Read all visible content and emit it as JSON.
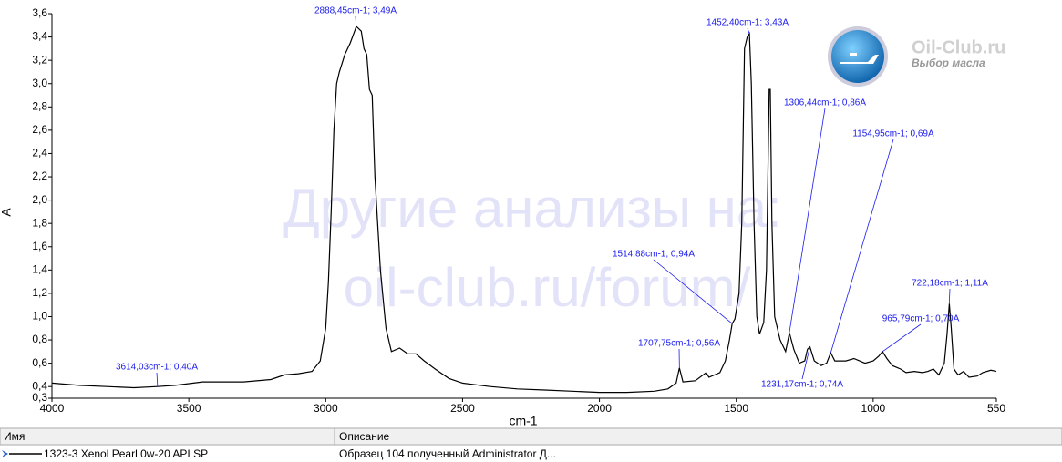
{
  "chart_data": {
    "type": "line",
    "color": "#000000",
    "xlabel": "cm-1",
    "ylabel": "A",
    "xlim": [
      4000,
      550
    ],
    "ylim": [
      0.3,
      3.6
    ],
    "xticks": [
      4000,
      3500,
      3000,
      2500,
      2000,
      1500,
      1000,
      550
    ],
    "yticks": [
      {
        "value": 0.3,
        "label": "0,3"
      },
      {
        "value": 0.4,
        "label": "0,4"
      },
      {
        "value": 0.6,
        "label": "0,6"
      },
      {
        "value": 0.8,
        "label": "0,8"
      },
      {
        "value": 1.0,
        "label": "1,0"
      },
      {
        "value": 1.2,
        "label": "1,2"
      },
      {
        "value": 1.4,
        "label": "1,4"
      },
      {
        "value": 1.6,
        "label": "1,6"
      },
      {
        "value": 1.8,
        "label": "1,8"
      },
      {
        "value": 2.0,
        "label": "2,0"
      },
      {
        "value": 2.2,
        "label": "2,2"
      },
      {
        "value": 2.4,
        "label": "2,4"
      },
      {
        "value": 2.6,
        "label": "2,6"
      },
      {
        "value": 2.8,
        "label": "2,8"
      },
      {
        "value": 3.0,
        "label": "3,0"
      },
      {
        "value": 3.2,
        "label": "3,2"
      },
      {
        "value": 3.4,
        "label": "3,4"
      },
      {
        "value": 3.6,
        "label": "3,6"
      }
    ],
    "x": [
      4000,
      3900,
      3800,
      3700,
      3614,
      3550,
      3450,
      3400,
      3300,
      3200,
      3150,
      3100,
      3050,
      3020,
      3000,
      2990,
      2980,
      2970,
      2960,
      2950,
      2930,
      2910,
      2888,
      2870,
      2860,
      2850,
      2840,
      2830,
      2820,
      2800,
      2780,
      2760,
      2730,
      2700,
      2670,
      2640,
      2600,
      2550,
      2500,
      2400,
      2300,
      2200,
      2100,
      2000,
      1900,
      1800,
      1750,
      1720,
      1708,
      1695,
      1650,
      1610,
      1600,
      1560,
      1540,
      1525,
      1515,
      1505,
      1490,
      1480,
      1470,
      1460,
      1452,
      1445,
      1435,
      1425,
      1415,
      1400,
      1390,
      1380,
      1376,
      1370,
      1360,
      1340,
      1320,
      1306,
      1290,
      1270,
      1250,
      1240,
      1231,
      1215,
      1190,
      1170,
      1155,
      1140,
      1100,
      1070,
      1030,
      1000,
      980,
      966,
      950,
      930,
      900,
      880,
      850,
      820,
      800,
      780,
      760,
      740,
      730,
      722,
      715,
      705,
      690,
      670,
      650,
      620,
      600,
      570,
      550
    ],
    "values": [
      0.43,
      0.41,
      0.4,
      0.39,
      0.4,
      0.41,
      0.44,
      0.44,
      0.44,
      0.46,
      0.5,
      0.51,
      0.53,
      0.62,
      0.9,
      1.3,
      1.9,
      2.6,
      3.0,
      3.1,
      3.25,
      3.35,
      3.49,
      3.45,
      3.3,
      3.25,
      2.95,
      2.9,
      2.2,
      1.4,
      0.9,
      0.7,
      0.73,
      0.68,
      0.68,
      0.62,
      0.55,
      0.47,
      0.43,
      0.4,
      0.38,
      0.37,
      0.36,
      0.35,
      0.35,
      0.36,
      0.38,
      0.43,
      0.56,
      0.44,
      0.45,
      0.52,
      0.48,
      0.52,
      0.62,
      0.8,
      0.94,
      0.98,
      1.2,
      1.8,
      3.3,
      3.4,
      3.43,
      3.0,
      1.8,
      1.0,
      0.85,
      0.95,
      1.4,
      2.95,
      2.95,
      1.8,
      1.0,
      0.8,
      0.7,
      0.86,
      0.72,
      0.6,
      0.62,
      0.72,
      0.74,
      0.62,
      0.58,
      0.6,
      0.69,
      0.62,
      0.62,
      0.64,
      0.6,
      0.62,
      0.66,
      0.7,
      0.64,
      0.58,
      0.55,
      0.52,
      0.53,
      0.52,
      0.53,
      0.55,
      0.5,
      0.6,
      0.85,
      1.11,
      0.9,
      0.55,
      0.5,
      0.53,
      0.48,
      0.49,
      0.52,
      0.54,
      0.53
    ],
    "annotations": [
      {
        "text": "2888,45cm-1; 3,49A",
        "x": 2888.45,
        "y": 3.49
      },
      {
        "text": "1452,40cm-1; 3,43A",
        "x": 1452.4,
        "y": 3.43
      },
      {
        "text": "1306,44cm-1; 0,86A",
        "x": 1306.44,
        "y": 0.86
      },
      {
        "text": "1154,95cm-1; 0,69A",
        "x": 1154.95,
        "y": 0.69
      },
      {
        "text": "1514,88cm-1; 0,94A",
        "x": 1514.88,
        "y": 0.94
      },
      {
        "text": "1707,75cm-1; 0,56A",
        "x": 1707.75,
        "y": 0.56
      },
      {
        "text": "3614,03cm-1; 0,40A",
        "x": 3614.03,
        "y": 0.4
      },
      {
        "text": "1231,17cm-1; 0,74A",
        "x": 1231.17,
        "y": 0.74
      },
      {
        "text": "965,79cm-1; 0,70A",
        "x": 965.79,
        "y": 0.7
      },
      {
        "text": "722,18cm-1; 1,11A",
        "x": 722.18,
        "y": 1.11
      }
    ]
  },
  "watermark": [
    "Другие анализы на:",
    "oil-club.ru/forum/"
  ],
  "logo": {
    "title": "Oil-Club.ru",
    "subtitle": "Выбор масла"
  },
  "table": {
    "headers": [
      "Имя",
      "Описание"
    ],
    "rows": [
      [
        "1323-3  Xenol Pearl 0w-20 API SP",
        "Образец 104 полученный Administrator Д..."
      ]
    ]
  }
}
